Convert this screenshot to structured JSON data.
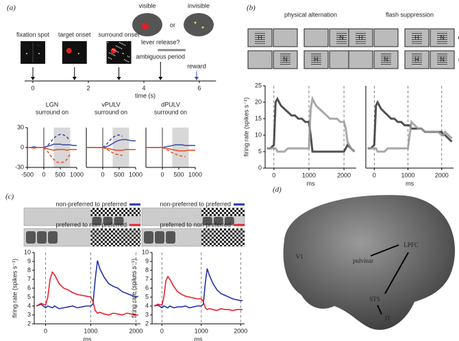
{
  "chart_data": [
    {
      "type": "line",
      "title": "LGN",
      "subtitle": "surround on",
      "x": [
        -500,
        -400,
        -300,
        -200,
        -100,
        0,
        100,
        200,
        300,
        400,
        500,
        600,
        700,
        800,
        900,
        1000
      ],
      "xlim": [
        -500,
        1000
      ],
      "xticks": [
        -500,
        0,
        500,
        1000
      ],
      "ylim": [
        -30,
        30
      ],
      "yticks": [
        -30,
        0,
        30
      ],
      "shaded_region": [
        300,
        800
      ],
      "vlines": [
        0
      ],
      "vlines_dashed": false,
      "series": [
        {
          "color": "#4050a8",
          "values": [
            0,
            0,
            1,
            0,
            0,
            0,
            2,
            3,
            5,
            5,
            5,
            4,
            4,
            4,
            3,
            3
          ]
        },
        {
          "color": "#e8502a",
          "values": [
            0,
            0,
            -1,
            0,
            0,
            0,
            -2,
            -3,
            -4,
            -3,
            -3,
            -3,
            -4,
            -3,
            -3,
            -3
          ]
        },
        {
          "color": "#4050a8",
          "dashed": true,
          "values": [
            null,
            null,
            null,
            null,
            null,
            0,
            2,
            8,
            14,
            18,
            20,
            19,
            16,
            10,
            null,
            null
          ]
        },
        {
          "color": "#e8502a",
          "dashed": true,
          "values": [
            null,
            null,
            null,
            null,
            null,
            0,
            -5,
            -12,
            -18,
            -22,
            -23,
            -22,
            -18,
            -10,
            null,
            null
          ]
        }
      ]
    },
    {
      "type": "line",
      "title": "vPULV",
      "subtitle": "surround on",
      "x": [
        -500,
        -400,
        -300,
        -200,
        -100,
        0,
        100,
        200,
        300,
        400,
        500,
        600,
        700,
        800,
        900,
        1000
      ],
      "xlim": [
        -500,
        1000
      ],
      "xticks": [
        0,
        500,
        1000
      ],
      "ylim": [
        -30,
        30
      ],
      "shaded_region": [
        300,
        800
      ],
      "vlines": [
        0
      ],
      "vlines_dashed": false,
      "series": [
        {
          "color": "#4050a8",
          "values": [
            0,
            0,
            0,
            0,
            0,
            0,
            1,
            3,
            6,
            9,
            11,
            12,
            12,
            11,
            10,
            10
          ]
        },
        {
          "color": "#e8502a",
          "values": [
            0,
            0,
            0,
            0,
            0,
            0,
            -1,
            -2,
            -3,
            -4,
            -4,
            -4,
            -3,
            -3,
            -3,
            -3
          ]
        },
        {
          "color": "#4050a8",
          "dashed": true,
          "values": [
            null,
            null,
            null,
            null,
            null,
            0,
            4,
            10,
            15,
            18,
            19,
            17,
            null,
            null,
            null,
            null
          ]
        },
        {
          "color": "#e8502a",
          "dashed": true,
          "values": [
            null,
            null,
            null,
            null,
            null,
            0,
            -2,
            -5,
            -8,
            -10,
            -11,
            -12,
            null,
            null,
            null,
            null
          ]
        }
      ]
    },
    {
      "type": "line",
      "title": "dPULV",
      "subtitle": "surround on",
      "x": [
        -500,
        -400,
        -300,
        -200,
        -100,
        0,
        100,
        200,
        300,
        400,
        500,
        600,
        700,
        800,
        900,
        1000
      ],
      "xlim": [
        -500,
        1000
      ],
      "xticks": [
        0,
        500,
        1000
      ],
      "ylim": [
        -30,
        30
      ],
      "shaded_region": [
        300,
        800
      ],
      "vlines": [
        0
      ],
      "vlines_dashed": false,
      "series": [
        {
          "color": "#4050a8",
          "values": [
            0,
            0,
            0,
            0,
            0,
            0,
            1,
            2,
            3,
            4,
            4,
            4,
            3,
            3,
            3,
            3
          ]
        },
        {
          "color": "#e8502a",
          "values": [
            0,
            0,
            0,
            0,
            0,
            0,
            -1,
            -2,
            -3,
            -4,
            -5,
            -5,
            -5,
            -4,
            -4,
            -4
          ]
        },
        {
          "color": "#e8502a",
          "dashed": true,
          "values": [
            null,
            null,
            null,
            null,
            null,
            0,
            -2,
            -5,
            -8,
            -10,
            -12,
            -13,
            -14,
            null,
            null,
            null
          ]
        }
      ]
    },
    {
      "type": "line",
      "title": "physical alternation",
      "xlabel": "ms",
      "ylabel": "firing rate (spikes s⁻¹)",
      "x": [
        -200,
        -100,
        0,
        50,
        100,
        200,
        300,
        400,
        500,
        600,
        700,
        800,
        900,
        1000,
        1050,
        1100,
        1200,
        1300,
        1400,
        1500,
        1600,
        1700,
        1800,
        1900,
        2000,
        2050,
        2100,
        2200,
        2300
      ],
      "xlim": [
        -250,
        2350
      ],
      "xticks": [
        0,
        1000,
        2000
      ],
      "ylim": [
        0,
        25
      ],
      "yticks": [
        0,
        5,
        10,
        15,
        20,
        25
      ],
      "vlines": [
        0,
        1000,
        2000
      ],
      "vlines_dashed": true,
      "series": [
        {
          "color": "#333333",
          "values": [
            6,
            6,
            7,
            20,
            21,
            19,
            18,
            17,
            16,
            16,
            15,
            15,
            14,
            14,
            10,
            5,
            5,
            5,
            5,
            5,
            5,
            5,
            5,
            5,
            5,
            6,
            7,
            6,
            5
          ]
        },
        {
          "color": "#999999",
          "values": [
            6,
            6,
            6,
            6,
            5,
            5,
            5,
            6,
            6,
            6,
            6,
            6,
            6,
            6,
            18,
            21,
            19,
            18,
            17,
            16,
            15,
            15,
            15,
            14,
            14,
            12,
            8,
            6,
            5
          ]
        }
      ]
    },
    {
      "type": "line",
      "title": "flash suppression",
      "xlabel": "ms",
      "x": [
        -200,
        -100,
        0,
        50,
        100,
        200,
        300,
        400,
        500,
        600,
        700,
        800,
        900,
        1000,
        1050,
        1100,
        1200,
        1300,
        1400,
        1500,
        1600,
        1700,
        1800,
        1900,
        2000,
        2050,
        2100,
        2200,
        2300
      ],
      "xlim": [
        -250,
        2350
      ],
      "xticks": [
        0,
        1000,
        2000
      ],
      "ylim": [
        0,
        25
      ],
      "vlines": [
        0,
        1000,
        2000
      ],
      "vlines_dashed": true,
      "series": [
        {
          "color": "#333333",
          "values": [
            6,
            6,
            7,
            19,
            20,
            18,
            17,
            16,
            15,
            15,
            14,
            14,
            13,
            13,
            13,
            12,
            12,
            12,
            12,
            11,
            11,
            11,
            11,
            11,
            11,
            10,
            10,
            9,
            8
          ]
        },
        {
          "color": "#999999",
          "values": [
            6,
            6,
            6,
            6,
            5,
            5,
            5,
            6,
            6,
            6,
            6,
            6,
            6,
            6,
            10,
            14,
            13,
            12,
            12,
            11,
            11,
            11,
            11,
            11,
            10,
            10,
            11,
            10,
            9
          ]
        }
      ]
    },
    {
      "type": "line",
      "xlabel": "ms",
      "ylabel": "firing rate (spikes s⁻¹)",
      "x": [
        -200,
        -100,
        0,
        50,
        100,
        150,
        200,
        300,
        400,
        500,
        600,
        700,
        800,
        900,
        1000,
        1050,
        1100,
        1150,
        1200,
        1300,
        1400,
        1500,
        1600,
        1700,
        1800,
        1900,
        2000,
        2050
      ],
      "xlim": [
        -250,
        2100
      ],
      "xticks": [
        0,
        1000,
        2000
      ],
      "ylim": [
        2,
        10
      ],
      "yticks": [
        2,
        3,
        4,
        5,
        6,
        7,
        8,
        9,
        10
      ],
      "vlines": [
        0,
        1000,
        2000
      ],
      "vlines_dashed": true,
      "series": [
        {
          "name": "non-preferred to preferred",
          "color": "#2233aa",
          "values": [
            4,
            4.2,
            3.8,
            4,
            3.9,
            3.8,
            4,
            3.7,
            3.8,
            3.9,
            4,
            3.8,
            3.9,
            4,
            4,
            4.2,
            7,
            9.1,
            8.2,
            7.2,
            6.5,
            6.2,
            6,
            5.6,
            5.4,
            5.2,
            5,
            5.1
          ]
        },
        {
          "name": "preferred to non-preferred",
          "color": "#e8202a",
          "values": [
            4,
            4.3,
            4.1,
            5,
            7,
            7.8,
            7.5,
            6.5,
            6,
            5.8,
            5.5,
            5.3,
            5.2,
            5.1,
            5,
            4.5,
            3.5,
            3.2,
            3.3,
            3.1,
            3,
            3.2,
            3.1,
            3,
            3.2,
            3.1,
            3,
            3
          ]
        }
      ]
    },
    {
      "type": "line",
      "xlabel": "ms",
      "ylabel": "firing rate (spikes s⁻¹)",
      "x": [
        -200,
        -100,
        0,
        50,
        100,
        150,
        200,
        300,
        400,
        500,
        600,
        700,
        800,
        900,
        1000,
        1050,
        1100,
        1150,
        1200,
        1300,
        1400,
        1500,
        1600,
        1700,
        1800,
        1900,
        2000,
        2050
      ],
      "xlim": [
        -250,
        2100
      ],
      "xticks": [
        0,
        1000,
        2000
      ],
      "ylim": [
        2,
        10
      ],
      "yticks": [
        2,
        3,
        4,
        5,
        6,
        7,
        8,
        9,
        10
      ],
      "vlines": [
        0,
        1000,
        2000
      ],
      "vlines_dashed": true,
      "series": [
        {
          "name": "non-preferred to preferred",
          "color": "#2233aa",
          "values": [
            4,
            4.1,
            3.8,
            4,
            3.9,
            3.8,
            4,
            3.8,
            3.9,
            3.9,
            4,
            3.8,
            3.9,
            4,
            4,
            4.2,
            6.5,
            8.2,
            7.5,
            6.5,
            5.8,
            5.4,
            5.2,
            5,
            4.8,
            4.7,
            4.6,
            4.6
          ]
        },
        {
          "name": "preferred to non-preferred",
          "color": "#e8202a",
          "values": [
            4,
            4.2,
            4.1,
            5,
            6.8,
            7.3,
            7,
            6.2,
            5.6,
            5.3,
            5.1,
            5,
            4.9,
            4.8,
            4.8,
            4.5,
            3.8,
            3.6,
            3.7,
            3.6,
            3.5,
            3.7,
            3.6,
            3.6,
            3.5,
            3.6,
            3.6,
            3.6
          ]
        }
      ]
    },
    {
      "type": "timeline",
      "xlabel": "time (s)",
      "xlim": [
        -0.3,
        6.6
      ],
      "xticks": [
        0,
        2,
        4,
        6
      ],
      "events": [
        {
          "label": "fixation spot",
          "time": 0
        },
        {
          "label": "target onset",
          "time": 1.5
        },
        {
          "label": "surround onset",
          "time": 3.1
        },
        {
          "label": "reward",
          "time": 5.9
        }
      ],
      "lever": "lever release?",
      "lever_time": 4.6,
      "ambiguous": "ambiguous period",
      "ambiguous_period": [
        4.5,
        5.5
      ]
    }
  ],
  "figure": {
    "labels": [
      "(a)",
      "(b)",
      "(c)",
      "(d)"
    ],
    "visible": "visible",
    "or": "or",
    "invisible": "invisible",
    "eye_labels": [
      "LE",
      "RE"
    ],
    "stim_letters": [
      "H",
      "N"
    ],
    "brain_regions": [
      "V1",
      "pulvinar",
      "STS",
      "LPFC",
      "IT"
    ]
  }
}
